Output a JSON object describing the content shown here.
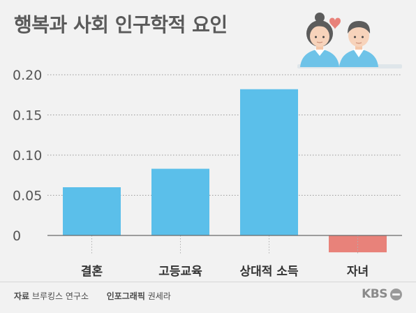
{
  "title": "행복과 사회 인구학적 요인",
  "chart_data": {
    "type": "bar",
    "categories": [
      "결혼",
      "고등교육",
      "상대적 소득",
      "자녀"
    ],
    "values": [
      0.06,
      0.083,
      0.182,
      -0.021
    ],
    "ylim": [
      -0.025,
      0.21
    ],
    "yticks": [
      0,
      0.05,
      0.1,
      0.15,
      0.2
    ],
    "ytick_labels": [
      "0",
      "0.05",
      "0.10",
      "0.15",
      "0.20"
    ],
    "grid": true,
    "colors": {
      "positive": "#5bbfea",
      "negative": "#e8827a"
    }
  },
  "footer": {
    "source_label": "자료",
    "source_value": "브루킹스 연구소",
    "graphic_label": "인포그래픽",
    "graphic_value": "권세라"
  },
  "logo": {
    "text": "KBS"
  },
  "illustration_icon": "couple-with-heart-icon"
}
